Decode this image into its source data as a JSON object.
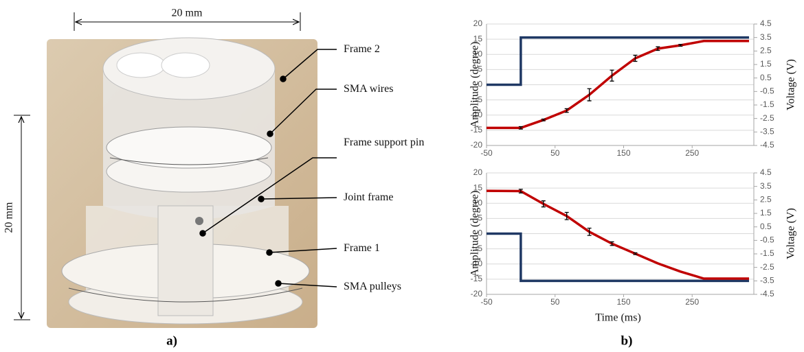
{
  "panel_a": {
    "dimension_top": "20 mm",
    "dimension_left": "20 mm",
    "callouts": [
      "Frame 2",
      "SMA wires",
      "Frame support pin",
      "Joint frame",
      "Frame 1",
      "SMA pulleys"
    ],
    "label": "a)"
  },
  "panel_b": {
    "label": "b)"
  },
  "chart_data": [
    {
      "type": "line",
      "y_label": "Amplitude (degree)",
      "y2_label": "Voltage (V)",
      "xlim": [
        -50,
        340
      ],
      "xticks": [
        -50,
        50,
        150,
        250
      ],
      "ylim": [
        -20,
        20
      ],
      "yticks": [
        20,
        15,
        10,
        5,
        0,
        -5,
        -10,
        -15,
        -20
      ],
      "y2lim": [
        -4.5,
        4.5
      ],
      "y2ticks": [
        4.5,
        3.5,
        2.5,
        1.5,
        0.5,
        -0.5,
        -1.5,
        -2.5,
        -3.5,
        -4.5
      ],
      "grid": true,
      "series": [
        {
          "color": "#1f3864",
          "axis": "y2",
          "x": [
            -50,
            0,
            0,
            333
          ],
          "values": [
            0,
            0,
            3.5,
            3.5
          ]
        },
        {
          "color": "#c00000",
          "x": [
            -50,
            0,
            33,
            67,
            100,
            133,
            167,
            200,
            233,
            267,
            333
          ],
          "values": [
            -14.2,
            -14.2,
            -11.6,
            -8.5,
            -3.3,
            3,
            8.7,
            11.9,
            13,
            14.4,
            14.4
          ],
          "errors": [
            null,
            0.4,
            0.3,
            0.6,
            2,
            1.8,
            1,
            0.6,
            0.3,
            null,
            null
          ]
        }
      ]
    },
    {
      "type": "line",
      "x_label": "Time (ms)",
      "y_label": "Amplitude (degree)",
      "y2_label": "Voltage (V)",
      "xlim": [
        -50,
        340
      ],
      "xticks": [
        -50,
        50,
        150,
        250
      ],
      "ylim": [
        -20,
        20
      ],
      "yticks": [
        20,
        15,
        10,
        5,
        0,
        -5,
        -10,
        -15,
        -20
      ],
      "y2lim": [
        -4.5,
        4.5
      ],
      "y2ticks": [
        4.5,
        3.5,
        2.5,
        1.5,
        0.5,
        -0.5,
        -1.5,
        -2.5,
        -3.5,
        -4.5
      ],
      "grid": true,
      "series": [
        {
          "color": "#1f3864",
          "axis": "y2",
          "x": [
            -50,
            0,
            0,
            333
          ],
          "values": [
            0,
            0,
            -3.5,
            -3.5
          ]
        },
        {
          "color": "#c00000",
          "x": [
            -50,
            0,
            33,
            67,
            100,
            133,
            167,
            200,
            233,
            267,
            333
          ],
          "values": [
            14.1,
            14,
            9.8,
            5.8,
            0.6,
            -3.3,
            -6.6,
            -9.8,
            -12.5,
            -14.8,
            -14.8
          ],
          "errors": [
            null,
            0.6,
            1,
            1.2,
            1.2,
            0.6,
            0.3,
            null,
            null,
            null,
            null
          ]
        }
      ]
    }
  ]
}
